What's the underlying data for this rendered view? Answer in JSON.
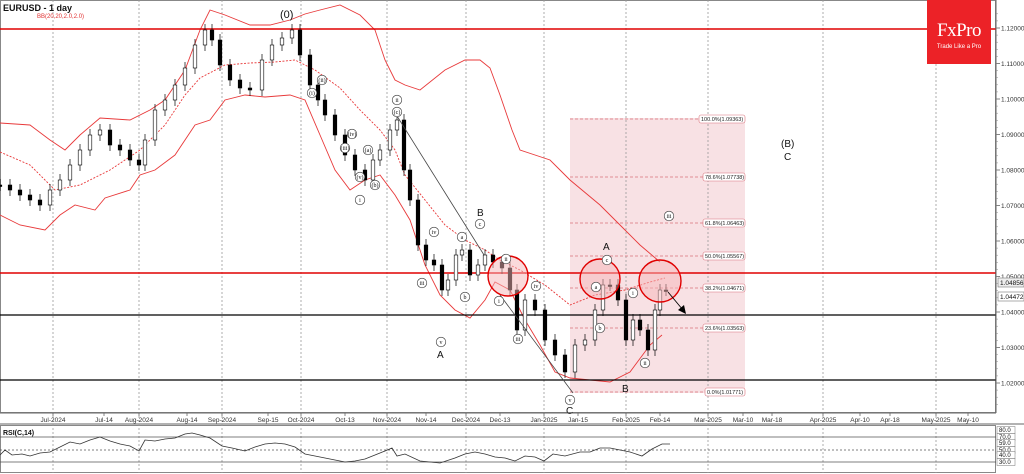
{
  "header": {
    "title": "EURUSD - 1 day",
    "indicator": "BB(20,20,2.0,2.0)"
  },
  "logo": {
    "brand": "FxPro",
    "tagline": "Trade Like a Pro",
    "color": "#ec2227"
  },
  "rsi": {
    "label": "RSI(C,14)",
    "levels": [
      "80.0",
      "70.0",
      "59.0",
      "50.0",
      "40.0",
      "30.0"
    ]
  },
  "colors": {
    "bollinger": "#e8393a",
    "resistance": "#e00000",
    "support": "#000000",
    "fib_zone": "#f7dcdf",
    "fib_line": "#d9717a",
    "grid": "#9a9a9a",
    "axis": "#666666"
  },
  "price_axis": {
    "labels": [
      "1.12000",
      "1.11000",
      "1.10000",
      "1.09000",
      "1.08000",
      "1.07000",
      "1.06000",
      "1.05000",
      "1.04000",
      "1.03000",
      "1.02000"
    ],
    "current_price_tags": [
      "1.04856",
      "1.04472"
    ]
  },
  "date_axis": {
    "labels": [
      "Jul-2024",
      "Jul-14",
      "Aug-2024",
      "Aug-14",
      "Sep-2024",
      "Sep-15",
      "Oct-2024",
      "Oct-13",
      "Nov-2024",
      "Nov-14",
      "Dec-2024",
      "Dec-13",
      "Jan-2025",
      "Jan-15",
      "Feb-2025",
      "Feb-14",
      "Mar-2025",
      "Mar-10",
      "Mar-18",
      "Apr-2025",
      "Apr-10",
      "Apr-18",
      "May-2025",
      "May-10"
    ]
  },
  "fibonacci": {
    "levels": [
      {
        "label": "100.0%(1.09363)",
        "price": 1.09363
      },
      {
        "label": "78.6%(1.07738)",
        "price": 1.07738
      },
      {
        "label": "61.8%(1.06463)",
        "price": 1.06463
      },
      {
        "label": "50.0%(1.05567)",
        "price": 1.05567
      },
      {
        "label": "38.2%(1.04671)",
        "price": 1.04671
      },
      {
        "label": "23.6%(1.03563)",
        "price": 1.03563
      },
      {
        "label": "0.0%(1.01771)",
        "price": 1.01771
      }
    ]
  },
  "wave_labels": {
    "zero": "(0)",
    "big_b": "(B)",
    "big_c": "C",
    "A1": "A",
    "B1": "B",
    "C1": "C",
    "A2": "A",
    "B2": "B",
    "i_small": "(i)",
    "ii_small": "(ii)",
    "iii_small": "(iii)",
    "iv_small": "(iv)",
    "v_small": "(v)",
    "a_small": "(a)",
    "b_small": "(b)",
    "c_small": "(c)",
    "roman_i": "i",
    "roman_ii": "ii",
    "roman_iii": "iii",
    "roman_iv": "iv",
    "roman_v": "v",
    "letter_a": "a",
    "letter_b": "b",
    "letter_c": "c"
  },
  "chart_data": {
    "type": "candlestick",
    "title": "EURUSD - 1 day",
    "instrument": "EURUSD",
    "timeframe": "1 day",
    "indicators": [
      "BB(20,20,2.0,2.0)",
      "RSI(C,14)"
    ],
    "ylim": [
      1.012,
      1.126
    ],
    "y_ticks": [
      1.02,
      1.03,
      1.04,
      1.05,
      1.06,
      1.07,
      1.08,
      1.09,
      1.1,
      1.11,
      1.12
    ],
    "x_ticks": [
      "Jul-2024",
      "Jul-14",
      "Aug-2024",
      "Aug-14",
      "Sep-2024",
      "Sep-15",
      "Oct-2024",
      "Oct-13",
      "Nov-2024",
      "Nov-14",
      "Dec-2024",
      "Dec-13",
      "Jan-2025",
      "Jan-15",
      "Feb-2025",
      "Feb-14",
      "Mar-2025",
      "Mar-10",
      "Mar-18",
      "Apr-2025",
      "Apr-10",
      "Apr-18",
      "May-2025",
      "May-10"
    ],
    "horizontal_lines": [
      {
        "price": 1.119,
        "color": "red",
        "role": "resistance"
      },
      {
        "price": 1.0505,
        "color": "red",
        "role": "resistance"
      },
      {
        "price": 1.0395,
        "color": "black",
        "role": "support"
      },
      {
        "price": 1.021,
        "color": "black",
        "role": "support"
      }
    ],
    "last_prices": [
      1.04856,
      1.04472
    ],
    "close_series_approx": {
      "x": [
        "Jun-25",
        "Jul-2024",
        "Jul-14",
        "Jul-25",
        "Aug-2024",
        "Aug-14",
        "Aug-25",
        "Sep-2024",
        "Sep-15",
        "Sep-25",
        "Oct-2024",
        "Oct-13",
        "Oct-23",
        "Nov-2024",
        "Nov-14",
        "Nov-25",
        "Dec-2024",
        "Dec-13",
        "Dec-23",
        "Jan-2025",
        "Jan-15",
        "Jan-25",
        "Feb-2025",
        "Feb-14",
        "Feb-19"
      ],
      "y": [
        1.071,
        1.074,
        1.089,
        1.084,
        1.079,
        1.1,
        1.115,
        1.106,
        1.115,
        1.118,
        1.107,
        1.093,
        1.081,
        1.086,
        1.053,
        1.056,
        1.054,
        1.05,
        1.04,
        1.035,
        1.029,
        1.049,
        1.037,
        1.048,
        1.0447
      ]
    },
    "rsi_levels": [
      30,
      40,
      50,
      59,
      70,
      80
    ],
    "annotations": [
      "(0)",
      "(B) C",
      "A",
      "B",
      "C",
      "i",
      "ii",
      "iii",
      "iv",
      "v",
      "a",
      "b",
      "c",
      "(i)",
      "(ii)",
      "(iii)",
      "(iv)",
      "(v)",
      "(a)",
      "(b)",
      "(c)"
    ],
    "fibonacci": [
      {
        "level": "100.0%",
        "price": 1.09363
      },
      {
        "level": "78.6%",
        "price": 1.07738
      },
      {
        "level": "61.8%",
        "price": 1.06463
      },
      {
        "level": "50.0%",
        "price": 1.05567
      },
      {
        "level": "38.2%",
        "price": 1.04671
      },
      {
        "level": "23.6%",
        "price": 1.03563
      },
      {
        "level": "0.0%",
        "price": 1.01771
      }
    ]
  }
}
